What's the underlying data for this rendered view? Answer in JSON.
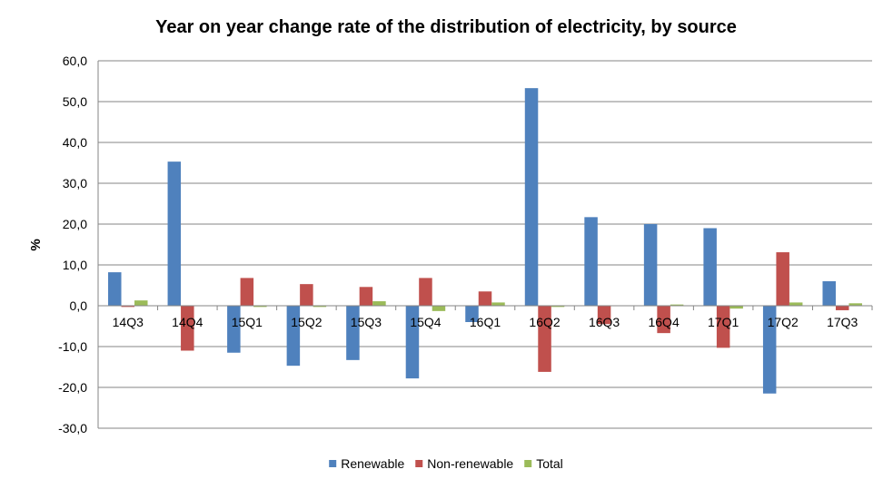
{
  "chart_data": {
    "type": "bar",
    "title": "Year on year change rate of the distribution of electricity, by source",
    "xlabel": "",
    "ylabel": "%",
    "ylim": [
      -30,
      60
    ],
    "yticks": [
      60,
      50,
      40,
      30,
      20,
      10,
      0,
      -10,
      -20,
      -30
    ],
    "ytick_labels": [
      "60,0",
      "50,0",
      "40,0",
      "30,0",
      "20,0",
      "10,0",
      "0,0",
      "-10,0",
      "-20,0",
      "-30,0"
    ],
    "grid": true,
    "legend_position": "bottom",
    "categories": [
      "14Q3",
      "14Q4",
      "15Q1",
      "15Q2",
      "15Q3",
      "15Q4",
      "16Q1",
      "16Q2",
      "16Q3",
      "16Q4",
      "17Q1",
      "17Q2",
      "17Q3"
    ],
    "series": [
      {
        "name": "Renewable",
        "color": "#4F81BD",
        "values": [
          8.2,
          35.3,
          -11.5,
          -14.7,
          -13.3,
          -17.8,
          -4.0,
          53.3,
          21.7,
          20.0,
          19.0,
          -21.5,
          6.0
        ]
      },
      {
        "name": "Non-renewable",
        "color": "#C0504D",
        "values": [
          -0.3,
          -11.0,
          6.8,
          5.3,
          4.6,
          6.8,
          3.5,
          -16.2,
          -4.5,
          -6.7,
          -10.3,
          13.1,
          -1.1
        ]
      },
      {
        "name": "Total",
        "color": "#9BBB59",
        "values": [
          1.3,
          0.0,
          -0.3,
          -0.3,
          1.1,
          -1.3,
          0.8,
          -0.3,
          0.0,
          0.3,
          -0.7,
          0.8,
          0.6
        ]
      }
    ]
  }
}
